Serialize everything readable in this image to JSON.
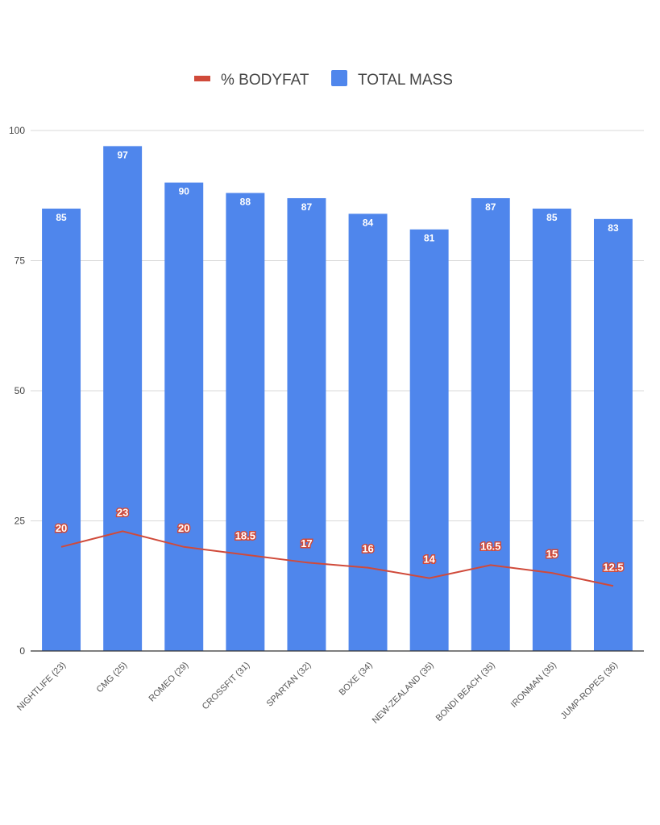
{
  "chart_data": {
    "type": "bar",
    "categories": [
      "NIGHTLIFE (23)",
      "CMG (25)",
      "ROMEO (29)",
      "CROSSFIT (31)",
      "SPARTAN (32)",
      "BOXE (34)",
      "NEW-ZEALAND (35)",
      "BONDI BEACH (35)",
      "IRONMAN (35)",
      "JUMP-ROPES (36)"
    ],
    "series": [
      {
        "name": "TOTAL MASS",
        "type": "bar",
        "color": "#4f86ec",
        "values": [
          85,
          97,
          90,
          88,
          87,
          84,
          81,
          87,
          85,
          83
        ]
      },
      {
        "name": "% BODYFAT",
        "type": "line",
        "color": "#d04a3a",
        "values": [
          20,
          23,
          20,
          18.5,
          17,
          16,
          14,
          16.5,
          15,
          12.5
        ]
      }
    ],
    "legend_order": [
      "% BODYFAT",
      "TOTAL MASS"
    ],
    "legend_position": "top",
    "y_ticks": [
      "0",
      "25",
      "50",
      "75",
      "100"
    ],
    "ylim": [
      0,
      100
    ],
    "grid": true,
    "title": "",
    "xlabel": "",
    "ylabel": ""
  }
}
